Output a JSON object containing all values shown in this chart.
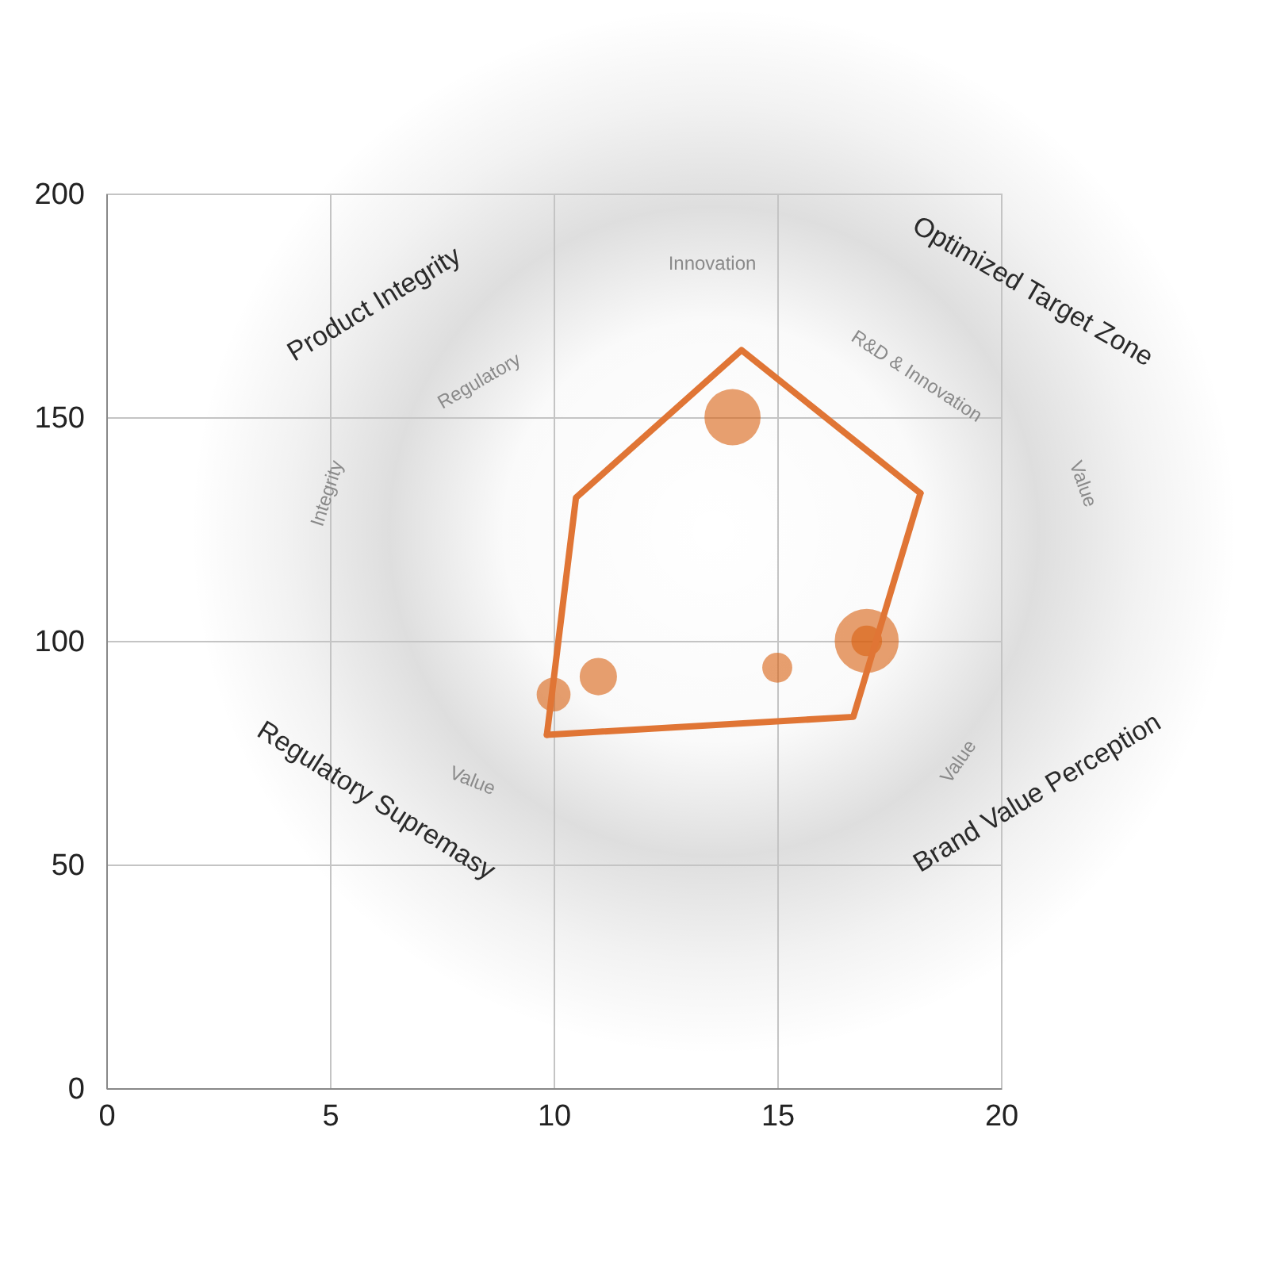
{
  "chart_data": {
    "type": "bubble",
    "xlim": [
      0,
      20
    ],
    "xticks": [
      0,
      5,
      10,
      15,
      20
    ],
    "ylim": [
      0,
      200
    ],
    "yticks": [
      0,
      50,
      100,
      150,
      200
    ],
    "grid": true,
    "series": [
      {
        "color": "#d96111",
        "x": [
          14,
          17,
          11,
          10,
          15,
          17
        ],
        "values": [
          150,
          100,
          92,
          88,
          94,
          100
        ],
        "sizes": [
          0.77,
          1,
          0.34,
          0.28,
          0.22,
          0.23
        ]
      },
      {
        "type": "line",
        "color": "#e07535",
        "x": [
          9.85,
          10.5,
          14.2,
          18.2
        ],
        "values": [
          79,
          132,
          165,
          133
        ]
      },
      {
        "type": "line",
        "color": "#e07535",
        "x": [
          9.85,
          16.7,
          18.2
        ],
        "values": [
          79,
          83,
          133
        ]
      }
    ],
    "annotations": [
      "Product Integrity",
      "Optimized Target Zone",
      "Regulatory Supremasy",
      "Brand Value Perception",
      "Innovation",
      "Regulatory",
      "R&D & Innovation",
      "Value",
      "Integrity",
      "Value",
      "Value"
    ]
  }
}
